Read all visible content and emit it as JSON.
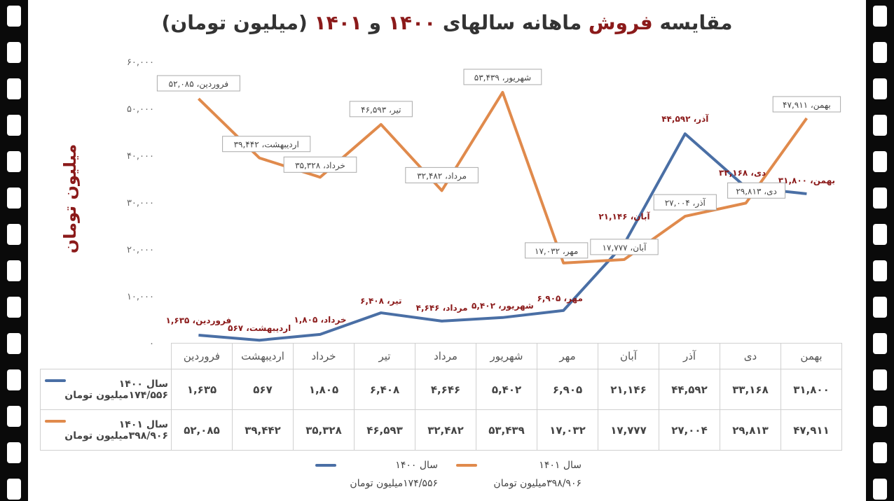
{
  "title": {
    "part1": "مقایسه",
    "part2": "فروش",
    "part3": "ماهانه سالهای",
    "part4": "۱۴۰۰",
    "part5": "و",
    "part6": "۱۴۰۱",
    "part7": "(میلیون تومان)"
  },
  "chart_data": {
    "type": "line",
    "ylabel": "میلیون تومان",
    "ylim": [
      0,
      60000
    ],
    "yticks": [
      0,
      10000,
      20000,
      30000,
      40000,
      50000,
      60000
    ],
    "ytick_labels": [
      "۰",
      "۱۰,۰۰۰",
      "۲۰,۰۰۰",
      "۳۰,۰۰۰",
      "۴۰,۰۰۰",
      "۵۰,۰۰۰",
      "۶۰,۰۰۰"
    ],
    "categories": [
      "فروردین",
      "اردیبهشت",
      "خرداد",
      "تیر",
      "مرداد",
      "شهریور",
      "مهر",
      "آبان",
      "آذر",
      "دی",
      "بهمن"
    ],
    "grid": false,
    "legend": "bottom",
    "series": [
      {
        "name": "سال ۱۴۰۰",
        "subtitle": "۱۷۴/۵۵۶میلیون تومان",
        "color": "#4a6fa5",
        "values": [
          1635,
          567,
          1805,
          6408,
          4646,
          5402,
          6905,
          21146,
          44592,
          33168,
          31800
        ],
        "labels": [
          "۱,۶۳۵",
          "۵۶۷",
          "۱,۸۰۵",
          "۶,۴۰۸",
          "۴,۶۴۶",
          "۵,۴۰۲",
          "۶,۹۰۵",
          "۲۱,۱۴۶",
          "۴۴,۵۹۲",
          "۳۳,۱۶۸",
          "۳۱,۸۰۰"
        ]
      },
      {
        "name": "سال ۱۴۰۱",
        "subtitle": "۳۹۸/۹۰۶میلیون تومان",
        "color": "#e08a4c",
        "values": [
          52085,
          39442,
          35328,
          46593,
          32482,
          53439,
          17032,
          17777,
          27004,
          29813,
          47911
        ],
        "labels": [
          "۵۲,۰۸۵",
          "۳۹,۴۴۲",
          "۳۵,۳۲۸",
          "۴۶,۵۹۳",
          "۳۲,۴۸۲",
          "۵۳,۴۳۹",
          "۱۷,۰۳۲",
          "۱۷,۷۷۷",
          "۲۷,۰۰۴",
          "۲۹,۸۱۳",
          "۴۷,۹۱۱"
        ]
      }
    ]
  }
}
